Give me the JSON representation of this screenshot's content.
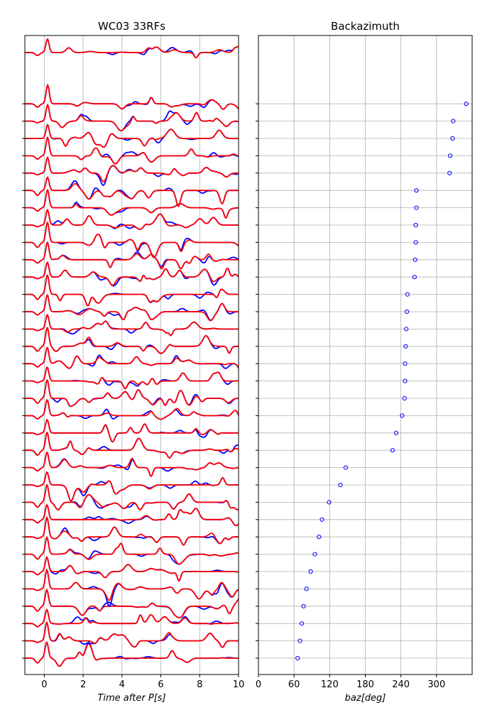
{
  "chart_data": [
    {
      "type": "line",
      "title": "WC03 33RFs",
      "xlabel": "Time after P[s]",
      "xlim": [
        -1,
        10
      ],
      "xticks": [
        0,
        2,
        4,
        6,
        8,
        10
      ],
      "grid": true,
      "trace_count": 33,
      "series": [
        {
          "role": "observed receiver functions",
          "color": "#0000ff"
        },
        {
          "role": "predicted receiver functions",
          "color": "#ff0000"
        }
      ],
      "note_values": "waveform amplitudes are not labeled on the chart"
    },
    {
      "type": "scatter",
      "title": "Backazimuth",
      "xlabel": "baz[deg]",
      "xlim": [
        0,
        360
      ],
      "xticks": [
        0,
        60,
        120,
        180,
        240,
        300
      ],
      "grid": true,
      "marker_color": "#0000ff",
      "baz": [
        350,
        328,
        327,
        323,
        322,
        266,
        266,
        265,
        265,
        264,
        263,
        251,
        250,
        249,
        248,
        247,
        247,
        246,
        242,
        232,
        226,
        147,
        138,
        119,
        107,
        102,
        95,
        88,
        81,
        76,
        73,
        70,
        66
      ]
    }
  ]
}
